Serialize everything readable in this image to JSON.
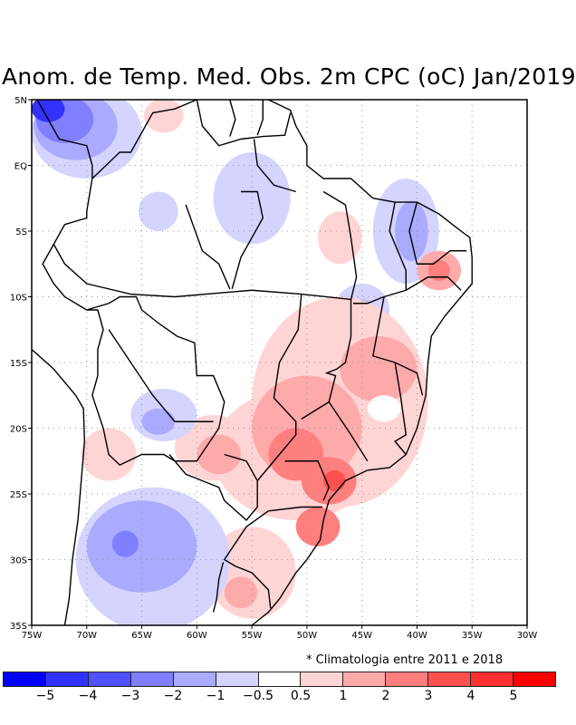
{
  "title": "Anom. de Temp. Med. Obs. 2m CPC (oC) Jan/2019",
  "note": "* Climatologia entre 2011 e 2018",
  "chart_data": {
    "type": "heatmap",
    "title": "Anom. de Temp. Med. Obs. 2m CPC (oC) Jan/2019",
    "xlim": [
      -75,
      -30
    ],
    "ylim": [
      -35,
      5
    ],
    "x_ticks": [
      {
        "v": -75,
        "label": "75W"
      },
      {
        "v": -70,
        "label": "70W"
      },
      {
        "v": -65,
        "label": "65W"
      },
      {
        "v": -60,
        "label": "60W"
      },
      {
        "v": -55,
        "label": "55W"
      },
      {
        "v": -50,
        "label": "50W"
      },
      {
        "v": -45,
        "label": "45W"
      },
      {
        "v": -40,
        "label": "40W"
      },
      {
        "v": -35,
        "label": "35W"
      },
      {
        "v": -30,
        "label": "30W"
      }
    ],
    "y_ticks": [
      {
        "v": 5,
        "label": "5N"
      },
      {
        "v": 0,
        "label": "EQ"
      },
      {
        "v": -5,
        "label": "5S"
      },
      {
        "v": -10,
        "label": "10S"
      },
      {
        "v": -15,
        "label": "15S"
      },
      {
        "v": -20,
        "label": "20S"
      },
      {
        "v": -25,
        "label": "25S"
      },
      {
        "v": -30,
        "label": "30S"
      },
      {
        "v": -35,
        "label": "35S"
      }
    ],
    "grid": true,
    "colorbar": {
      "colors": [
        "#0000ff",
        "#3232ff",
        "#5050ff",
        "#7f7fff",
        "#aaaaff",
        "#d4d4ff",
        "#ffffff",
        "#ffd4d4",
        "#ffaaaa",
        "#ff7f7f",
        "#ff5050",
        "#ff3030",
        "#ff0000"
      ],
      "labels": [
        "-5",
        "-4",
        "-3",
        "-2",
        "-1",
        "-0.5",
        "0.5",
        "1",
        "2",
        "3",
        "4",
        "5"
      ]
    },
    "anomaly_regions": [
      {
        "lon": -70,
        "lat": 2.5,
        "rlon": 5,
        "rlat": 3.5,
        "level": 5
      },
      {
        "lon": -71,
        "lat": 3,
        "rlon": 3.8,
        "rlat": 2.6,
        "level": 4
      },
      {
        "lon": -72,
        "lat": 3.5,
        "rlon": 2.6,
        "rlat": 1.8,
        "level": 3
      },
      {
        "lon": -73.5,
        "lat": 4.3,
        "rlon": 1.5,
        "rlat": 1.0,
        "level": 1
      },
      {
        "lon": -63,
        "lat": 3.8,
        "rlon": 1.8,
        "rlat": 1.3,
        "level": 7
      },
      {
        "lon": -55,
        "lat": -2.5,
        "rlon": 3.5,
        "rlat": 3.5,
        "level": 5
      },
      {
        "lon": -63.5,
        "lat": -3.5,
        "rlon": 1.8,
        "rlat": 1.5,
        "level": 5
      },
      {
        "lon": -41,
        "lat": -5,
        "rlon": 3,
        "rlat": 4,
        "level": 5
      },
      {
        "lon": -40.5,
        "lat": -5,
        "rlon": 1.5,
        "rlat": 2.3,
        "level": 4
      },
      {
        "lon": -45,
        "lat": -11,
        "rlon": 2.5,
        "rlat": 2,
        "level": 5
      },
      {
        "lon": -45,
        "lat": -11.2,
        "rlon": 1.2,
        "rlat": 1,
        "level": 4
      },
      {
        "lon": -38,
        "lat": -8,
        "rlon": 2,
        "rlat": 1.5,
        "level": 8
      },
      {
        "lon": -38,
        "lat": -8,
        "rlon": 1,
        "rlat": 0.8,
        "level": 9
      },
      {
        "lon": -47,
        "lat": -5.5,
        "rlon": 2,
        "rlat": 2,
        "level": 7
      },
      {
        "lon": -47,
        "lat": -18,
        "rlon": 8,
        "rlat": 8,
        "level": 7
      },
      {
        "lon": -51,
        "lat": -22,
        "rlon": 7.5,
        "rlat": 5,
        "level": 7
      },
      {
        "lon": -50,
        "lat": -20,
        "rlon": 5,
        "rlat": 4,
        "level": 8
      },
      {
        "lon": -43.5,
        "lat": -15.5,
        "rlon": 3.5,
        "rlat": 2.5,
        "level": 8
      },
      {
        "lon": -51,
        "lat": -22,
        "rlon": 2.5,
        "rlat": 2,
        "level": 9
      },
      {
        "lon": -48,
        "lat": -24,
        "rlon": 2.5,
        "rlat": 1.8,
        "level": 9
      },
      {
        "lon": -49,
        "lat": -27.5,
        "rlon": 2,
        "rlat": 1.5,
        "level": 9
      },
      {
        "lon": -47.5,
        "lat": -24,
        "rlon": 1,
        "rlat": 0.8,
        "level": 10
      },
      {
        "lon": -43,
        "lat": -18.5,
        "rlon": 1.5,
        "rlat": 1,
        "level": 6
      },
      {
        "lon": -58.5,
        "lat": -21.5,
        "rlon": 3.5,
        "rlat": 2.5,
        "level": 7
      },
      {
        "lon": -58,
        "lat": -22,
        "rlon": 2,
        "rlat": 1.5,
        "level": 8
      },
      {
        "lon": -68,
        "lat": -22,
        "rlon": 2.5,
        "rlat": 2,
        "level": 7
      },
      {
        "lon": -63,
        "lat": -19,
        "rlon": 3,
        "rlat": 2,
        "level": 5
      },
      {
        "lon": -63.5,
        "lat": -19.5,
        "rlon": 1.5,
        "rlat": 1,
        "level": 4
      },
      {
        "lon": -55,
        "lat": -31,
        "rlon": 4,
        "rlat": 3.5,
        "level": 7
      },
      {
        "lon": -56,
        "lat": -32.5,
        "rlon": 1.5,
        "rlat": 1.2,
        "level": 8
      },
      {
        "lon": -64,
        "lat": -30,
        "rlon": 7,
        "rlat": 5.5,
        "level": 5
      },
      {
        "lon": -65,
        "lat": -29,
        "rlon": 5,
        "rlat": 3.5,
        "level": 4
      },
      {
        "lon": -66.5,
        "lat": -28.8,
        "rlon": 1.2,
        "rlat": 1,
        "level": 3
      }
    ]
  }
}
